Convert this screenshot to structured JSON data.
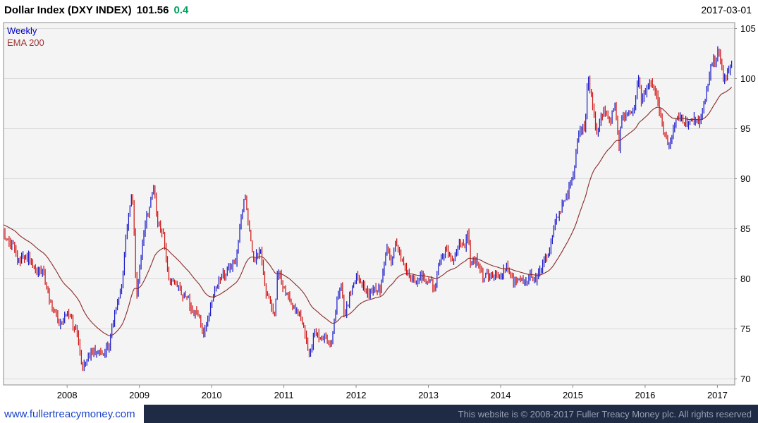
{
  "header": {
    "instrument": "Dollar Index (DXY INDEX)",
    "price": "101.56",
    "change": "0.4",
    "change_color": "#00a05a",
    "date": "2017-03-01"
  },
  "legend": {
    "weekly_label": "Weekly",
    "weekly_color": "#0000cc",
    "ema_label": "EMA 200",
    "ema_color": "#a03333"
  },
  "footer": {
    "site_link": "www.fullertreacymoney.com",
    "link_color": "#1a43c8",
    "copyright": "This website is © 2008-2017 Fuller Treacy Money plc. All rights reserved",
    "bar_color": "#1f2a44",
    "text_color": "#98a0b0"
  },
  "chart_data": {
    "type": "ohlc",
    "description": "Weekly price bars of the US Dollar Index (DXY) with a 200 EMA overlay; blue bars = up weeks, red bars = down weeks",
    "title": "Dollar Index (DXY INDEX)",
    "timeframe": "Weekly",
    "overlay": "EMA 200",
    "last_price": 101.56,
    "change": 0.4,
    "last_date": "2017-03-01",
    "ylim": [
      70,
      105
    ],
    "y_ticks": [
      105,
      100,
      95,
      90,
      85,
      80,
      75,
      70
    ],
    "x_ticks": [
      2008,
      2009,
      2010,
      2011,
      2012,
      2013,
      2014,
      2015,
      2016,
      2017
    ],
    "x_range": [
      2007.12,
      2017.24
    ],
    "grid": "horizontal-only",
    "legend_position": "top-left-inside",
    "up_color": "#1c1cc8",
    "down_color": "#d01414",
    "ema_color": "#8b2a2a",
    "plot_bg": "#f4f4f4",
    "grid_color": "#d9d9d9",
    "border_color": "#8c8c8c",
    "series": [
      {
        "name": "DXY weekly close (approximate anchor points: [decimal_year, index_value])",
        "points": [
          [
            2007.083,
            84.8
          ],
          [
            2007.167,
            84.0
          ],
          [
            2007.25,
            83.2
          ],
          [
            2007.333,
            81.6
          ],
          [
            2007.417,
            82.2
          ],
          [
            2007.5,
            81.9
          ],
          [
            2007.583,
            80.7
          ],
          [
            2007.667,
            80.7
          ],
          [
            2007.75,
            78.0
          ],
          [
            2007.833,
            76.4
          ],
          [
            2007.917,
            75.3
          ],
          [
            2008.0,
            76.7
          ],
          [
            2008.083,
            75.5
          ],
          [
            2008.167,
            73.7
          ],
          [
            2008.208,
            70.9
          ],
          [
            2008.25,
            71.8
          ],
          [
            2008.333,
            72.7
          ],
          [
            2008.417,
            72.9
          ],
          [
            2008.5,
            72.5
          ],
          [
            2008.583,
            73.4
          ],
          [
            2008.667,
            77.2
          ],
          [
            2008.75,
            79.1
          ],
          [
            2008.833,
            85.5
          ],
          [
            2008.896,
            88.3
          ],
          [
            2008.917,
            87.4
          ],
          [
            2008.958,
            77.9
          ],
          [
            2009.0,
            80.7
          ],
          [
            2009.083,
            85.8
          ],
          [
            2009.167,
            88.0
          ],
          [
            2009.208,
            89.4
          ],
          [
            2009.25,
            85.4
          ],
          [
            2009.333,
            84.6
          ],
          [
            2009.417,
            79.3
          ],
          [
            2009.5,
            80.0
          ],
          [
            2009.583,
            78.3
          ],
          [
            2009.667,
            78.1
          ],
          [
            2009.75,
            76.7
          ],
          [
            2009.833,
            76.4
          ],
          [
            2009.875,
            74.3
          ],
          [
            2009.917,
            75.0
          ],
          [
            2010.0,
            77.9
          ],
          [
            2010.083,
            79.5
          ],
          [
            2010.167,
            80.4
          ],
          [
            2010.25,
            81.1
          ],
          [
            2010.333,
            81.9
          ],
          [
            2010.417,
            86.6
          ],
          [
            2010.458,
            88.5
          ],
          [
            2010.5,
            86.0
          ],
          [
            2010.583,
            81.5
          ],
          [
            2010.667,
            83.2
          ],
          [
            2010.75,
            78.7
          ],
          [
            2010.833,
            77.3
          ],
          [
            2010.875,
            76.3
          ],
          [
            2010.917,
            81.2
          ],
          [
            2011.0,
            79.0
          ],
          [
            2011.083,
            77.7
          ],
          [
            2011.167,
            76.9
          ],
          [
            2011.25,
            75.9
          ],
          [
            2011.333,
            73.0
          ],
          [
            2011.375,
            72.8
          ],
          [
            2011.417,
            74.6
          ],
          [
            2011.5,
            74.3
          ],
          [
            2011.583,
            73.9
          ],
          [
            2011.625,
            73.5
          ],
          [
            2011.667,
            74.1
          ],
          [
            2011.75,
            78.6
          ],
          [
            2011.792,
            79.6
          ],
          [
            2011.833,
            76.2
          ],
          [
            2011.917,
            78.4
          ],
          [
            2012.0,
            80.2
          ],
          [
            2012.083,
            79.3
          ],
          [
            2012.167,
            78.7
          ],
          [
            2012.25,
            79.0
          ],
          [
            2012.333,
            78.8
          ],
          [
            2012.417,
            83.0
          ],
          [
            2012.5,
            81.6
          ],
          [
            2012.542,
            84.0
          ],
          [
            2012.583,
            82.7
          ],
          [
            2012.667,
            81.2
          ],
          [
            2012.75,
            79.9
          ],
          [
            2012.833,
            80.0
          ],
          [
            2012.917,
            80.2
          ],
          [
            2013.0,
            79.8
          ],
          [
            2013.083,
            79.2
          ],
          [
            2013.167,
            81.9
          ],
          [
            2013.25,
            83.0
          ],
          [
            2013.333,
            81.7
          ],
          [
            2013.417,
            83.4
          ],
          [
            2013.5,
            83.1
          ],
          [
            2013.542,
            84.6
          ],
          [
            2013.583,
            81.5
          ],
          [
            2013.667,
            82.1
          ],
          [
            2013.75,
            80.2
          ],
          [
            2013.833,
            80.2
          ],
          [
            2013.917,
            80.7
          ],
          [
            2014.0,
            80.0
          ],
          [
            2014.083,
            81.3
          ],
          [
            2014.167,
            79.7
          ],
          [
            2014.25,
            80.2
          ],
          [
            2014.333,
            79.5
          ],
          [
            2014.417,
            80.4
          ],
          [
            2014.5,
            79.8
          ],
          [
            2014.583,
            81.5
          ],
          [
            2014.667,
            82.7
          ],
          [
            2014.75,
            85.9
          ],
          [
            2014.833,
            87.0
          ],
          [
            2014.917,
            88.4
          ],
          [
            2015.0,
            90.3
          ],
          [
            2015.083,
            94.8
          ],
          [
            2015.167,
            95.3
          ],
          [
            2015.208,
            100.2
          ],
          [
            2015.25,
            98.4
          ],
          [
            2015.333,
            94.6
          ],
          [
            2015.417,
            96.9
          ],
          [
            2015.5,
            95.5
          ],
          [
            2015.583,
            97.3
          ],
          [
            2015.64,
            93.0
          ],
          [
            2015.667,
            95.8
          ],
          [
            2015.75,
            96.4
          ],
          [
            2015.833,
            96.9
          ],
          [
            2015.917,
            100.2
          ],
          [
            2015.94,
            97.4
          ],
          [
            2016.0,
            98.6
          ],
          [
            2016.083,
            99.6
          ],
          [
            2016.167,
            98.2
          ],
          [
            2016.25,
            94.6
          ],
          [
            2016.333,
            93.1
          ],
          [
            2016.417,
            95.9
          ],
          [
            2016.5,
            96.1
          ],
          [
            2016.583,
            95.5
          ],
          [
            2016.667,
            96.0
          ],
          [
            2016.75,
            95.5
          ],
          [
            2016.833,
            98.3
          ],
          [
            2016.917,
            101.5
          ],
          [
            2017.0,
            102.2
          ],
          [
            2017.01,
            103.6
          ],
          [
            2017.083,
            99.6
          ],
          [
            2017.167,
            101.1
          ],
          [
            2017.21,
            101.56
          ]
        ]
      }
    ]
  }
}
